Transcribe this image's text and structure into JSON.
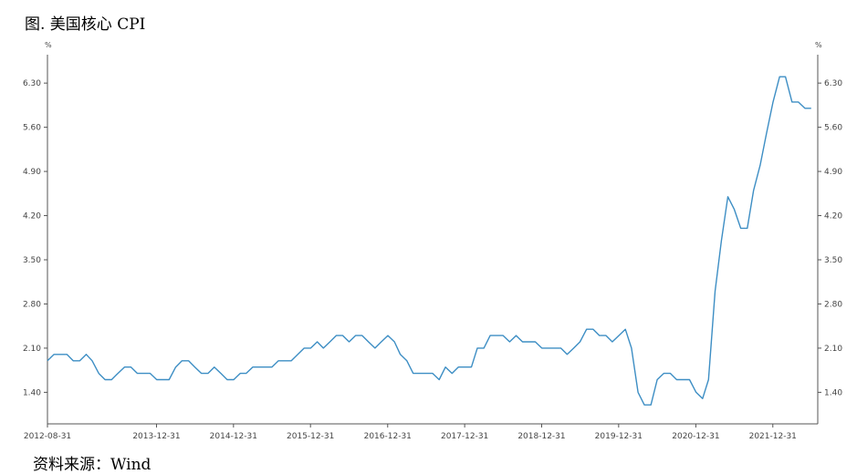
{
  "header": {
    "title": "图. 美国核心 CPI"
  },
  "footer": {
    "source": "资料来源：Wind"
  },
  "chart_data": {
    "type": "line",
    "title": "图. 美国核心 CPI",
    "y_unit_left": "%",
    "y_unit_right": "%",
    "ylim": [
      0.9,
      6.75
    ],
    "y_ticks": [
      "1.40",
      "2.10",
      "2.80",
      "3.50",
      "4.20",
      "4.90",
      "5.60",
      "6.30"
    ],
    "x_ticks": [
      "2012-08-31",
      "2013-12-31",
      "2014-12-31",
      "2015-12-31",
      "2016-12-31",
      "2017-12-31",
      "2018-12-31",
      "2019-12-31",
      "2020-12-31",
      "2021-12-31"
    ],
    "grid": false,
    "line_color": "#3d8ec4",
    "series": [
      {
        "x": [
          "2012-08",
          "2012-09",
          "2012-10",
          "2012-11",
          "2012-12",
          "2013-01",
          "2013-02",
          "2013-03",
          "2013-04",
          "2013-05",
          "2013-06",
          "2013-07",
          "2013-08",
          "2013-09",
          "2013-10",
          "2013-11",
          "2013-12",
          "2014-01",
          "2014-02",
          "2014-03",
          "2014-04",
          "2014-05",
          "2014-06",
          "2014-07",
          "2014-08",
          "2014-09",
          "2014-10",
          "2014-11",
          "2014-12",
          "2015-01",
          "2015-02",
          "2015-03",
          "2015-04",
          "2015-05",
          "2015-06",
          "2015-07",
          "2015-08",
          "2015-09",
          "2015-10",
          "2015-11",
          "2015-12",
          "2016-01",
          "2016-02",
          "2016-03",
          "2016-04",
          "2016-05",
          "2016-06",
          "2016-07",
          "2016-08",
          "2016-09",
          "2016-10",
          "2016-11",
          "2016-12",
          "2017-01",
          "2017-02",
          "2017-03",
          "2017-04",
          "2017-05",
          "2017-06",
          "2017-07",
          "2017-08",
          "2017-09",
          "2017-10",
          "2017-11",
          "2017-12",
          "2018-01",
          "2018-02",
          "2018-03",
          "2018-04",
          "2018-05",
          "2018-06",
          "2018-07",
          "2018-08",
          "2018-09",
          "2018-10",
          "2018-11",
          "2018-12",
          "2019-01",
          "2019-02",
          "2019-03",
          "2019-04",
          "2019-05",
          "2019-06",
          "2019-07",
          "2019-08",
          "2019-09",
          "2019-10",
          "2019-11",
          "2019-12",
          "2020-01",
          "2020-02",
          "2020-03",
          "2020-04",
          "2020-05",
          "2020-06",
          "2020-07",
          "2020-08",
          "2020-09",
          "2020-10",
          "2020-11",
          "2020-12",
          "2021-01",
          "2021-02",
          "2021-03",
          "2021-04",
          "2021-05",
          "2021-06",
          "2021-07",
          "2021-08",
          "2021-09",
          "2021-10",
          "2021-11",
          "2021-12",
          "2022-01",
          "2022-02",
          "2022-03",
          "2022-04",
          "2022-05",
          "2022-06",
          "2022-07"
        ],
        "values": [
          1.9,
          2.0,
          2.0,
          2.0,
          1.9,
          1.9,
          2.0,
          1.9,
          1.7,
          1.6,
          1.6,
          1.7,
          1.8,
          1.8,
          1.7,
          1.7,
          1.7,
          1.6,
          1.6,
          1.6,
          1.8,
          1.9,
          1.9,
          1.8,
          1.7,
          1.7,
          1.8,
          1.7,
          1.6,
          1.6,
          1.7,
          1.7,
          1.8,
          1.8,
          1.8,
          1.8,
          1.9,
          1.9,
          1.9,
          2.0,
          2.1,
          2.1,
          2.2,
          2.1,
          2.2,
          2.3,
          2.3,
          2.2,
          2.3,
          2.3,
          2.2,
          2.1,
          2.2,
          2.3,
          2.2,
          2.0,
          1.9,
          1.7,
          1.7,
          1.7,
          1.7,
          1.6,
          1.8,
          1.7,
          1.8,
          1.8,
          1.8,
          2.1,
          2.1,
          2.3,
          2.3,
          2.3,
          2.2,
          2.3,
          2.2,
          2.2,
          2.2,
          2.1,
          2.1,
          2.1,
          2.1,
          2.0,
          2.1,
          2.2,
          2.4,
          2.4,
          2.3,
          2.3,
          2.2,
          2.3,
          2.4,
          2.1,
          1.4,
          1.2,
          1.2,
          1.6,
          1.7,
          1.7,
          1.6,
          1.6,
          1.6,
          1.4,
          1.3,
          1.6,
          3.0,
          3.8,
          4.5,
          4.3,
          4.0,
          4.0,
          4.6,
          5.0,
          5.5,
          6.0,
          6.4,
          6.4,
          6.0,
          6.0,
          5.9,
          5.9
        ]
      }
    ]
  }
}
